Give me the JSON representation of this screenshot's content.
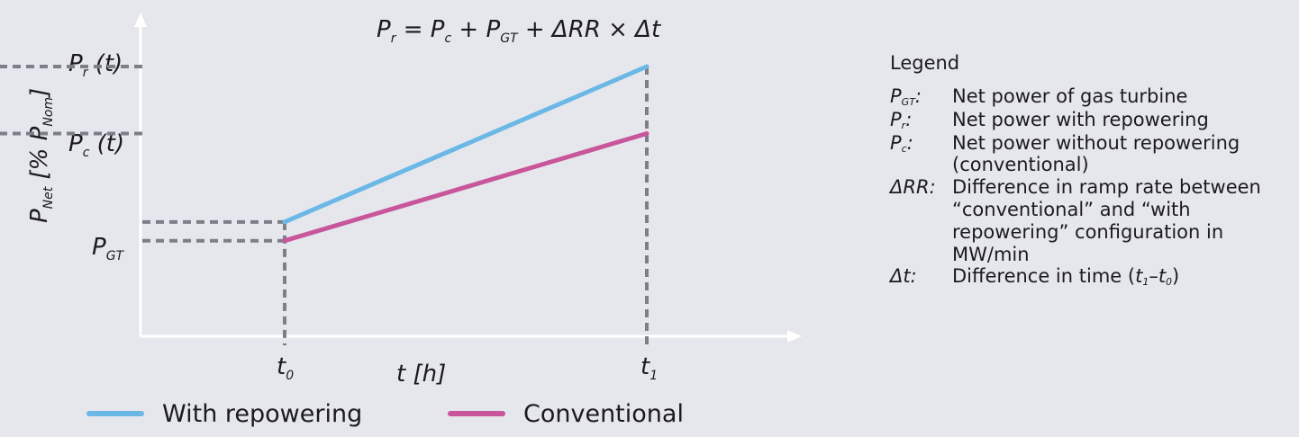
{
  "formula": {
    "lhs_base": "P",
    "lhs_sub": "r",
    "eq": " = ",
    "t1_base": "P",
    "t1_sub": "c",
    "plus1": " + ",
    "t2_base": "P",
    "t2_sub": "GT",
    "plus2": " + ",
    "t3": "ΔRR",
    "times": " × ",
    "t4": "Δt"
  },
  "y_axis": {
    "base": "P",
    "sub_net": "Net",
    "bracket_open": " [% ",
    "unit_base": "P",
    "unit_sub": "Nom",
    "bracket_close": "]"
  },
  "x_axis": {
    "label": "t [h]"
  },
  "y_ticks": {
    "pr": {
      "base": "P",
      "sub": "r",
      "rest": " (t)"
    },
    "pc": {
      "base": "P",
      "sub": "c",
      "rest": " (t)"
    },
    "pgt": {
      "base": "P",
      "sub": "GT"
    }
  },
  "x_ticks": {
    "t0": {
      "base": "t",
      "sub": "0"
    },
    "t1": {
      "base": "t",
      "sub": "1"
    }
  },
  "chart_data": {
    "type": "line",
    "x": [
      "t0",
      "t1"
    ],
    "series": [
      {
        "name": "With repowering",
        "color": "#6bb8e6",
        "values": [
          0.42,
          1.0
        ]
      },
      {
        "name": "Conventional",
        "color": "#c9559b",
        "values": [
          0.35,
          0.75
        ]
      }
    ],
    "guides": {
      "color": "#7d7e8a",
      "pr": 1.0,
      "pc": 0.75,
      "pgt_upper": 0.42,
      "pgt_lower": 0.35
    }
  },
  "series_key": {
    "with_repowering": "With repowering",
    "conventional": "Conventional"
  },
  "legend": {
    "title": "Legend",
    "items": [
      {
        "sym_base": "P",
        "sym_sub": "GT",
        "sym_tail": ":",
        "desc": "Net power of gas turbine"
      },
      {
        "sym_base": "P",
        "sym_sub": "r",
        "sym_tail": ":",
        "desc": "Net power with repowering"
      },
      {
        "sym_base": "P",
        "sym_sub": "c",
        "sym_tail": ":",
        "desc": "Net power without repowering (conventional)"
      },
      {
        "sym_base": "ΔRR",
        "sym_sub": "",
        "sym_tail": ":",
        "desc": "Difference in ramp rate between “conventional” and “with repowering” configuration in MW/min"
      },
      {
        "sym_base": "Δt",
        "sym_sub": "",
        "sym_tail": ":",
        "desc_prefix": "Difference in time (",
        "d1_base": "t",
        "d1_sub": "1",
        "dash": "–",
        "d2_base": "t",
        "d2_sub": "0",
        "close": ")"
      }
    ]
  }
}
